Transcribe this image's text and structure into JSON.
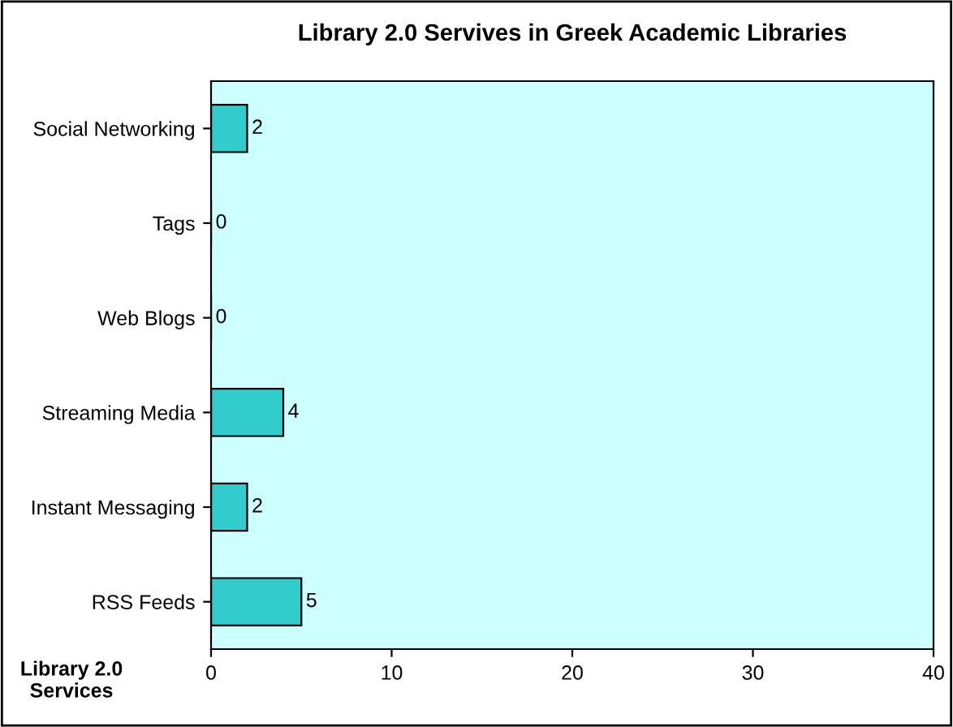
{
  "chart_data": {
    "type": "bar",
    "orientation": "horizontal",
    "title": "Library 2.0 Servives in Greek Academic Libraries",
    "ylabel": "Library 2.0\nServices",
    "categories": [
      "Social Networking",
      "Tags",
      "Web Blogs",
      "Streaming Media",
      "Instant Messaging",
      "RSS Feeds"
    ],
    "values": [
      2,
      0,
      0,
      4,
      2,
      5
    ],
    "color": "#33cccc",
    "xlim": [
      0,
      40
    ],
    "xticks": [
      0,
      10,
      20,
      30,
      40
    ],
    "data_labels": true,
    "grid": false,
    "legend": false
  }
}
